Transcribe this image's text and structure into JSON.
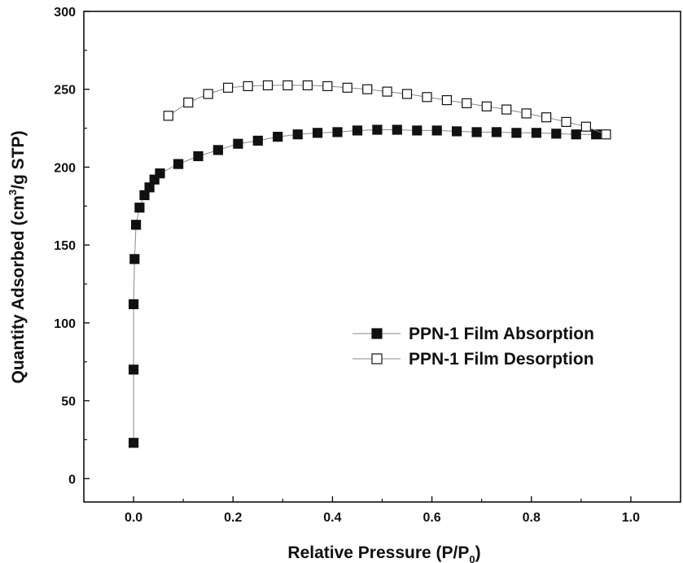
{
  "chart_data": {
    "type": "scatter",
    "xlabel": "Relative Pressure (P/P",
    "xlabel_sub": "0",
    "xlabel_end": ")",
    "ylabel": "Quantity Adsorbed (cm",
    "ylabel_sup": "3",
    "ylabel_end": "/g STP)",
    "xlim": [
      -0.1,
      1.1
    ],
    "ylim": [
      -15,
      300
    ],
    "xticks": [
      0.0,
      0.2,
      0.4,
      0.6,
      0.8,
      1.0
    ],
    "xtick_labels": [
      "0.0",
      "0.2",
      "0.4",
      "0.6",
      "0.8",
      "1.0"
    ],
    "yticks": [
      0,
      50,
      100,
      150,
      200,
      250,
      300
    ],
    "ytick_labels": [
      "0",
      "50",
      "100",
      "150",
      "200",
      "250",
      "300"
    ],
    "grid": false,
    "legend_position": "right-middle",
    "series": [
      {
        "name": "PPN-1 Film Absorption",
        "marker": "filled-square",
        "color": "#111111",
        "line_color": "#888888",
        "x": [
          0.0,
          0.0,
          0.0,
          0.002,
          0.005,
          0.012,
          0.022,
          0.032,
          0.042,
          0.053,
          0.09,
          0.13,
          0.17,
          0.21,
          0.25,
          0.29,
          0.33,
          0.37,
          0.41,
          0.45,
          0.49,
          0.53,
          0.57,
          0.61,
          0.65,
          0.69,
          0.73,
          0.77,
          0.81,
          0.85,
          0.89,
          0.93
        ],
        "y": [
          23,
          70,
          112,
          141,
          163,
          174,
          182,
          187,
          192,
          196,
          202,
          207,
          211,
          215,
          217,
          219.5,
          221,
          222,
          222.5,
          223.5,
          224,
          224,
          223.5,
          223.5,
          223,
          222.5,
          222.5,
          222,
          222,
          221.5,
          221,
          221
        ]
      },
      {
        "name": "PPN-1 Film Desorption",
        "marker": "open-square",
        "color": "#111111",
        "line_color": "#888888",
        "x": [
          0.07,
          0.11,
          0.15,
          0.19,
          0.23,
          0.27,
          0.31,
          0.35,
          0.39,
          0.43,
          0.47,
          0.51,
          0.55,
          0.59,
          0.63,
          0.67,
          0.71,
          0.75,
          0.79,
          0.83,
          0.87,
          0.91,
          0.95
        ],
        "y": [
          233,
          241.5,
          247,
          251,
          252,
          252.5,
          252.5,
          252.5,
          252,
          251,
          250,
          248.5,
          247,
          245,
          243,
          241,
          239,
          237,
          234.5,
          232,
          229,
          226,
          221
        ]
      }
    ]
  }
}
